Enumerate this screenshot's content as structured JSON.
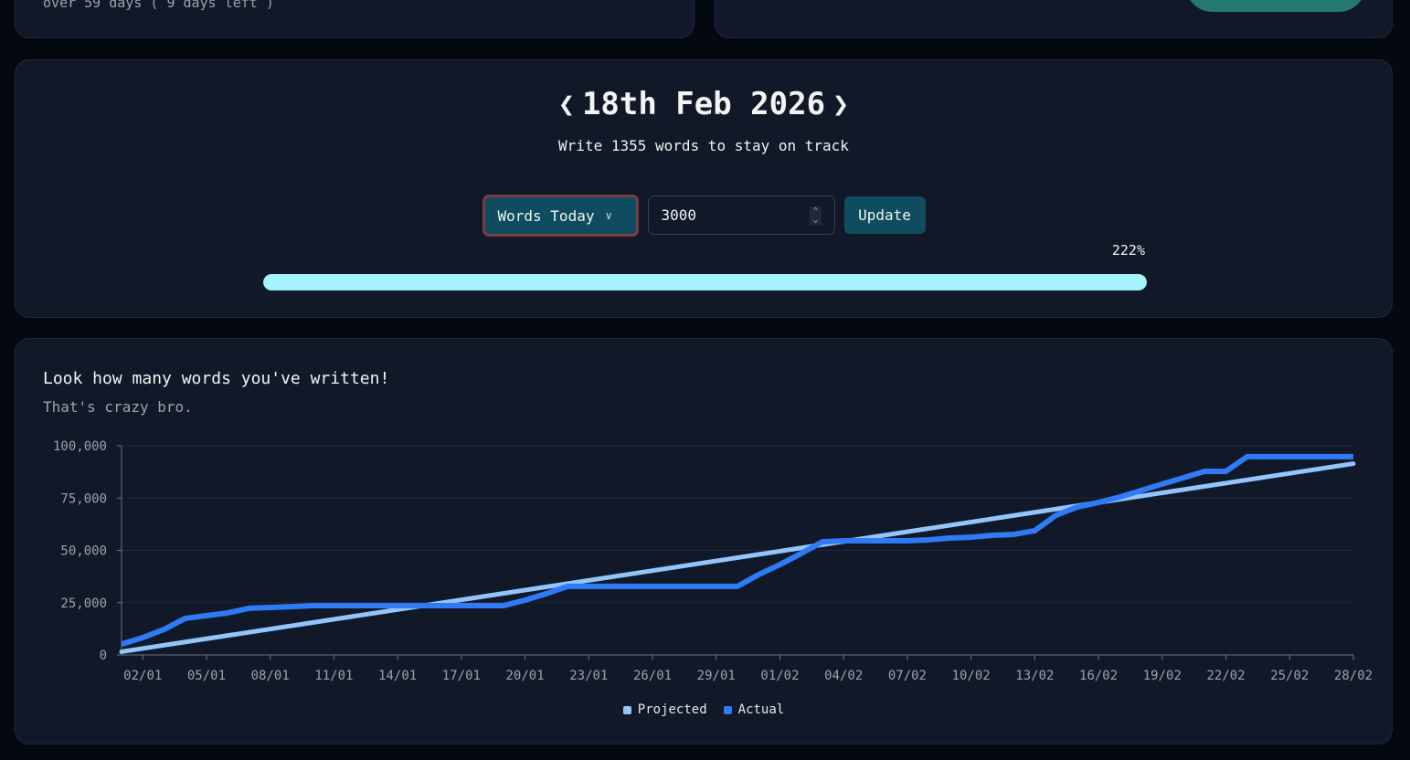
{
  "top_left_card": {
    "subtitle": "over 59 days ( 9 days left )"
  },
  "top_right_card": {
    "button_color": "#23796f"
  },
  "day_panel": {
    "date": "18th Feb 2026",
    "prev_icon": "chevron-left-icon",
    "next_icon": "chevron-right-icon",
    "track_message": "Write 1355 words to stay on track",
    "mode_select": {
      "selected": "Words Today"
    },
    "words_input": {
      "value": "3000"
    },
    "update_label": "Update",
    "progress_label": "222%",
    "progress_fraction": 1.0
  },
  "chart_panel": {
    "title": "Look how many words you've written!",
    "subtitle": "That's crazy bro."
  },
  "chart_data": {
    "type": "line",
    "x_start": "2026-01-01",
    "x_end": "2026-02-28",
    "x_tick_labels": [
      "02/01",
      "05/01",
      "08/01",
      "11/01",
      "14/01",
      "17/01",
      "20/01",
      "23/01",
      "26/01",
      "29/01",
      "01/02",
      "04/02",
      "07/02",
      "10/02",
      "13/02",
      "16/02",
      "19/02",
      "22/02",
      "25/02",
      "28/02"
    ],
    "y_tick_labels": [
      "0",
      "25,000",
      "50,000",
      "75,000",
      "100,000"
    ],
    "ylim": [
      0,
      100000
    ],
    "grid": "horizontal",
    "legend": "bottom",
    "series": [
      {
        "name": "Projected",
        "color": "#93c5fd",
        "daily_increment": 1550,
        "start_value": 1550
      },
      {
        "name": "Actual",
        "color": "#2f7bf5",
        "values": [
          5200,
          8300,
          12200,
          17500,
          18800,
          20100,
          22300,
          22700,
          23100,
          23600,
          23600,
          23600,
          23600,
          23600,
          23600,
          23600,
          23600,
          23600,
          23600,
          26200,
          29300,
          32800,
          32800,
          32800,
          32800,
          32800,
          32800,
          32800,
          32800,
          32800,
          38400,
          43200,
          48500,
          54100,
          54600,
          54600,
          54600,
          54600,
          55000,
          55900,
          56300,
          57200,
          57600,
          59400,
          66800,
          70700,
          72900,
          75500,
          78600,
          81700,
          84700,
          87800,
          87800,
          94800,
          94800,
          94800,
          94800,
          94800,
          94800
        ]
      }
    ]
  }
}
